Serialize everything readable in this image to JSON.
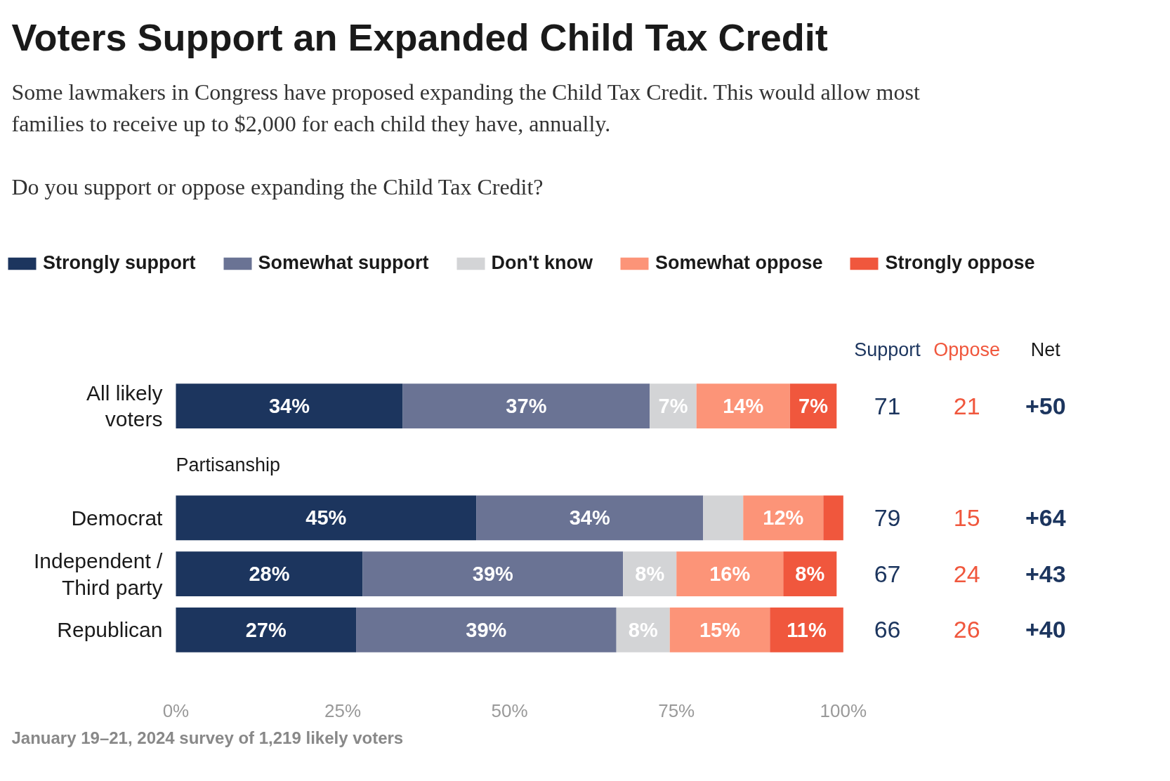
{
  "chart_data": [
    {
      "type": "bar",
      "orientation": "horizontal",
      "stacked": true,
      "title": "Voters Support an Expanded Child Tax Credit",
      "subtitle": "Some lawmakers in Congress have proposed expanding the Child Tax Credit. This would allow most families to receive up to $2,000 for each child they have, annually.",
      "categories": [
        "All likely voters",
        "Democrat",
        "Independent / Third party",
        "Republican"
      ],
      "series": [
        {
          "name": "Strongly support",
          "color": "#1c355e",
          "values": [
            34,
            45,
            28,
            27
          ],
          "value_labels": [
            "34%",
            "45%",
            "28%",
            "27%"
          ]
        },
        {
          "name": "Somewhat support",
          "color": "#6a7394",
          "values": [
            37,
            34,
            39,
            39
          ],
          "value_labels": [
            "37%",
            "34%",
            "39%",
            "39%"
          ]
        },
        {
          "name": "Don't know",
          "color": "#d3d4d6",
          "values": [
            7,
            6,
            8,
            8
          ],
          "value_labels": [
            "7%",
            null,
            "8%",
            "8%"
          ]
        },
        {
          "name": "Somewhat oppose",
          "color": "#fc9478",
          "values": [
            14,
            12,
            16,
            15
          ],
          "value_labels": [
            "14%",
            "12%",
            "16%",
            "15%"
          ]
        },
        {
          "name": "Strongly oppose",
          "color": "#f0573d",
          "values": [
            7,
            3,
            8,
            11
          ],
          "value_labels": [
            "7%",
            null,
            "8%",
            "11%"
          ]
        }
      ],
      "xlim": [
        0,
        100
      ],
      "xticks": [
        {
          "value": 0,
          "label": "0%"
        },
        {
          "value": 25,
          "label": "25%"
        },
        {
          "value": 50,
          "label": "50%"
        },
        {
          "value": 75,
          "label": "75%"
        },
        {
          "value": 100,
          "label": "100%"
        }
      ],
      "grid": false,
      "legend": "top",
      "annotations": [
        "Do you support or oppose expanding the Child Tax Credit?",
        "Partisanship",
        "January 19–21, 2024 survey of 1,219 likely voters"
      ]
    },
    {
      "type": "other",
      "categories": [
        "Support",
        "Oppose",
        "Net"
      ],
      "colors": [
        "#1c355e",
        "#f0573d",
        "#1c355e"
      ],
      "cell_labels": [
        [
          "71",
          "21",
          "+50"
        ],
        [
          "79",
          "15",
          "+64"
        ],
        [
          "67",
          "24",
          "+43"
        ],
        [
          "66",
          "26",
          "+40"
        ]
      ]
    }
  ]
}
